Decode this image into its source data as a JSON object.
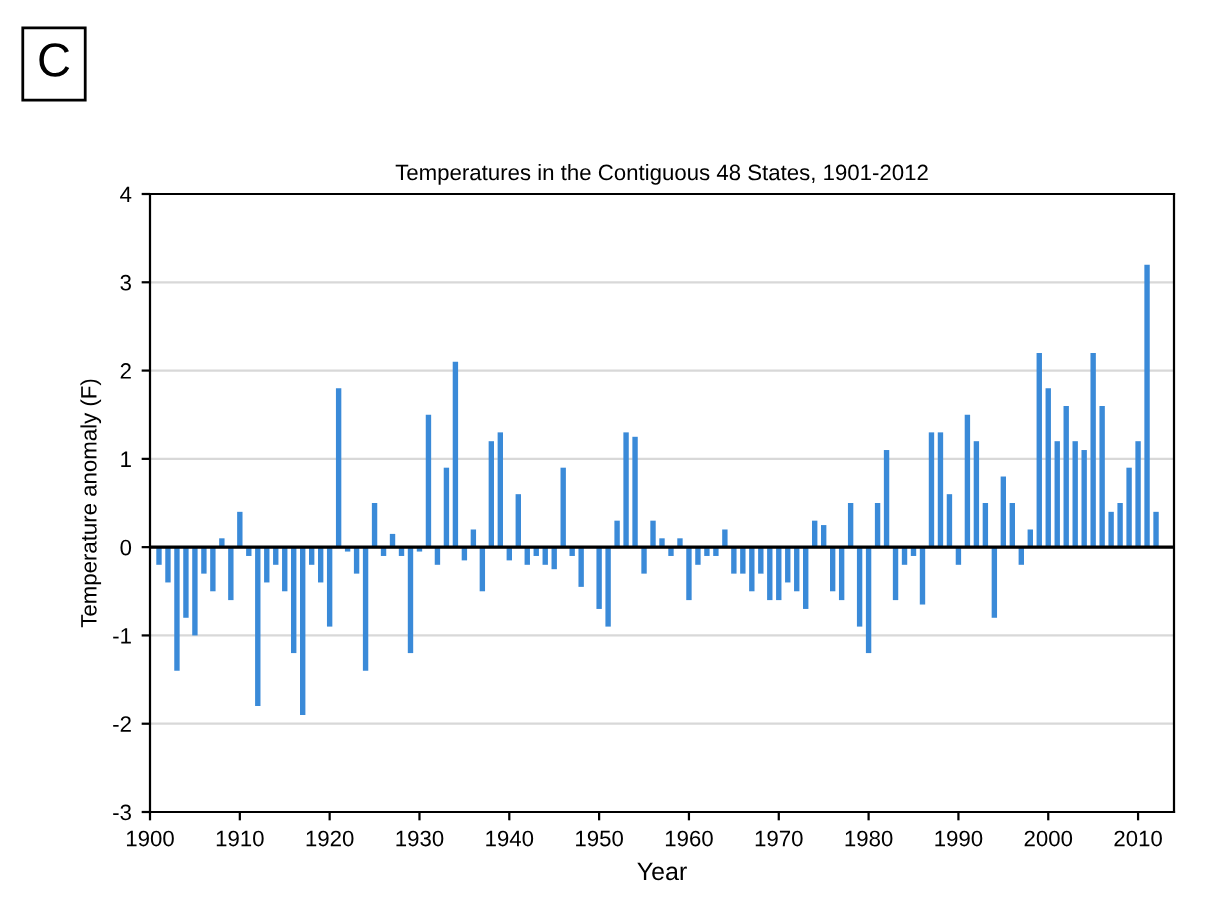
{
  "chart_data": {
    "type": "bar",
    "title": "Temperatures in the Contiguous 48 States, 1901-2012",
    "xlabel": "Year",
    "ylabel": "Temperature anomaly (F)",
    "annotations": [
      "C"
    ],
    "x": [
      1901,
      1902,
      1903,
      1904,
      1905,
      1906,
      1907,
      1908,
      1909,
      1910,
      1911,
      1912,
      1913,
      1914,
      1915,
      1916,
      1917,
      1918,
      1919,
      1920,
      1921,
      1922,
      1923,
      1924,
      1925,
      1926,
      1927,
      1928,
      1929,
      1930,
      1931,
      1932,
      1933,
      1934,
      1935,
      1936,
      1937,
      1938,
      1939,
      1940,
      1941,
      1942,
      1943,
      1944,
      1945,
      1946,
      1947,
      1948,
      1949,
      1950,
      1951,
      1952,
      1953,
      1954,
      1955,
      1956,
      1957,
      1958,
      1959,
      1960,
      1961,
      1962,
      1963,
      1964,
      1965,
      1966,
      1967,
      1968,
      1969,
      1970,
      1971,
      1972,
      1973,
      1974,
      1975,
      1976,
      1977,
      1978,
      1979,
      1980,
      1981,
      1982,
      1983,
      1984,
      1985,
      1986,
      1987,
      1988,
      1989,
      1990,
      1991,
      1992,
      1993,
      1994,
      1995,
      1996,
      1997,
      1998,
      1999,
      2000,
      2001,
      2002,
      2003,
      2004,
      2005,
      2006,
      2007,
      2008,
      2009,
      2010,
      2011,
      2012
    ],
    "values": [
      -0.2,
      -0.4,
      -1.4,
      -0.8,
      -1.0,
      -0.3,
      -0.5,
      0.1,
      -0.6,
      0.4,
      -0.1,
      -1.8,
      -0.4,
      -0.2,
      -0.5,
      -1.2,
      -1.9,
      -0.2,
      -0.4,
      -0.9,
      1.8,
      -0.05,
      -0.3,
      -1.4,
      0.5,
      -0.1,
      0.15,
      -0.1,
      -1.2,
      -0.05,
      1.5,
      -0.2,
      0.9,
      2.1,
      -0.15,
      0.2,
      -0.5,
      1.2,
      1.3,
      -0.15,
      0.6,
      -0.2,
      -0.1,
      -0.2,
      -0.25,
      0.9,
      -0.1,
      -0.45,
      0.0,
      -0.7,
      -0.9,
      0.3,
      1.3,
      1.25,
      -0.3,
      0.3,
      0.1,
      -0.1,
      0.1,
      -0.6,
      -0.2,
      -0.1,
      -0.1,
      0.2,
      -0.3,
      -0.3,
      -0.5,
      -0.3,
      -0.6,
      -0.6,
      -0.4,
      -0.5,
      -0.7,
      0.3,
      0.25,
      -0.5,
      -0.6,
      0.5,
      -0.9,
      -1.2,
      0.5,
      1.1,
      -0.6,
      -0.2,
      -0.1,
      -0.65,
      1.3,
      1.3,
      0.6,
      -0.2,
      1.5,
      1.2,
      0.5,
      -0.8,
      0.8,
      0.5,
      -0.2,
      0.2,
      2.2,
      1.8,
      1.2,
      1.6,
      1.2,
      1.1,
      2.2,
      1.6,
      0.4,
      0.5,
      0.9,
      1.2,
      3.2,
      0.4
    ],
    "color": "#3a8ad8",
    "xlim": [
      1900,
      2014
    ],
    "xticks": [
      1900,
      1910,
      1920,
      1930,
      1940,
      1950,
      1960,
      1970,
      1980,
      1990,
      2000,
      2010
    ],
    "ylim": [
      -3,
      4
    ],
    "yticks": [
      -3,
      -2,
      -1,
      0,
      1,
      2,
      3,
      4
    ],
    "grid": "y"
  }
}
